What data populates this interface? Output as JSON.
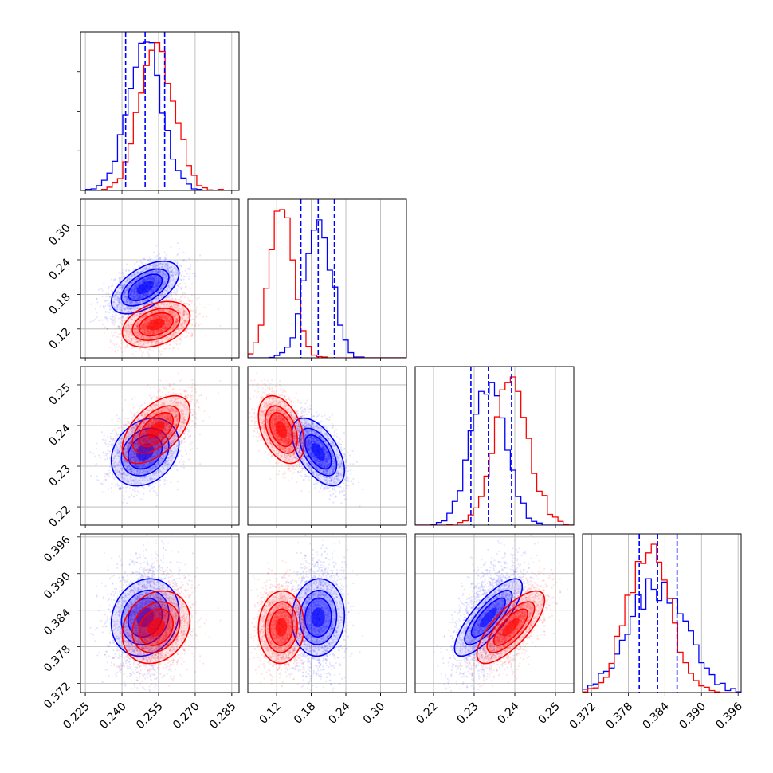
{
  "chart_data": {
    "type": "corner",
    "title": "",
    "grid": true,
    "colors": {
      "blue": "#0000ff",
      "red": "#ff0000",
      "grid": "#b0b0b0"
    },
    "series": [
      {
        "color": "#0000ff",
        "means": [
          0.2495,
          0.192,
          0.2335,
          0.3828
        ],
        "sigmas": [
          0.007,
          0.023,
          0.0042,
          0.0032
        ],
        "correlation": [
          [
            1,
            0.55,
            0.25,
            0.15
          ],
          [
            0.55,
            1,
            -0.55,
            0.05
          ],
          [
            0.25,
            -0.55,
            1,
            0.8
          ],
          [
            0.15,
            0.05,
            0.8,
            1
          ]
        ],
        "quantile_lines": [
          [
            0.2415,
            0.2495,
            0.2575
          ],
          [
            0.162,
            0.192,
            0.22
          ],
          [
            0.2292,
            0.2335,
            0.2392
          ],
          [
            0.3798,
            0.3828,
            0.386
          ]
        ]
      },
      {
        "color": "#ff0000",
        "means": [
          0.254,
          0.128,
          0.239,
          0.3812
        ],
        "sigmas": [
          0.007,
          0.02,
          0.0042,
          0.003
        ],
        "correlation": [
          [
            1,
            0.35,
            0.55,
            0.2
          ],
          [
            0.35,
            1,
            -0.4,
            0.05
          ],
          [
            0.55,
            -0.4,
            1,
            0.75
          ],
          [
            0.2,
            0.05,
            0.75,
            1
          ]
        ]
      }
    ],
    "parameters": [
      {
        "range": [
          0.223,
          0.288
        ],
        "ticks": [
          "0.225",
          "0.240",
          "0.255",
          "0.270",
          "0.285"
        ]
      },
      {
        "range": [
          0.07,
          0.345
        ],
        "ticks": [
          "0.12",
          "0.18",
          "0.24",
          "0.30"
        ]
      },
      {
        "range": [
          0.2155,
          0.2545
        ],
        "ticks": [
          "0.22",
          "0.23",
          "0.24",
          "0.25"
        ]
      },
      {
        "range": [
          0.3705,
          0.3965
        ],
        "ticks": [
          "0.372",
          "0.378",
          "0.384",
          "0.390",
          "0.396"
        ]
      }
    ]
  }
}
